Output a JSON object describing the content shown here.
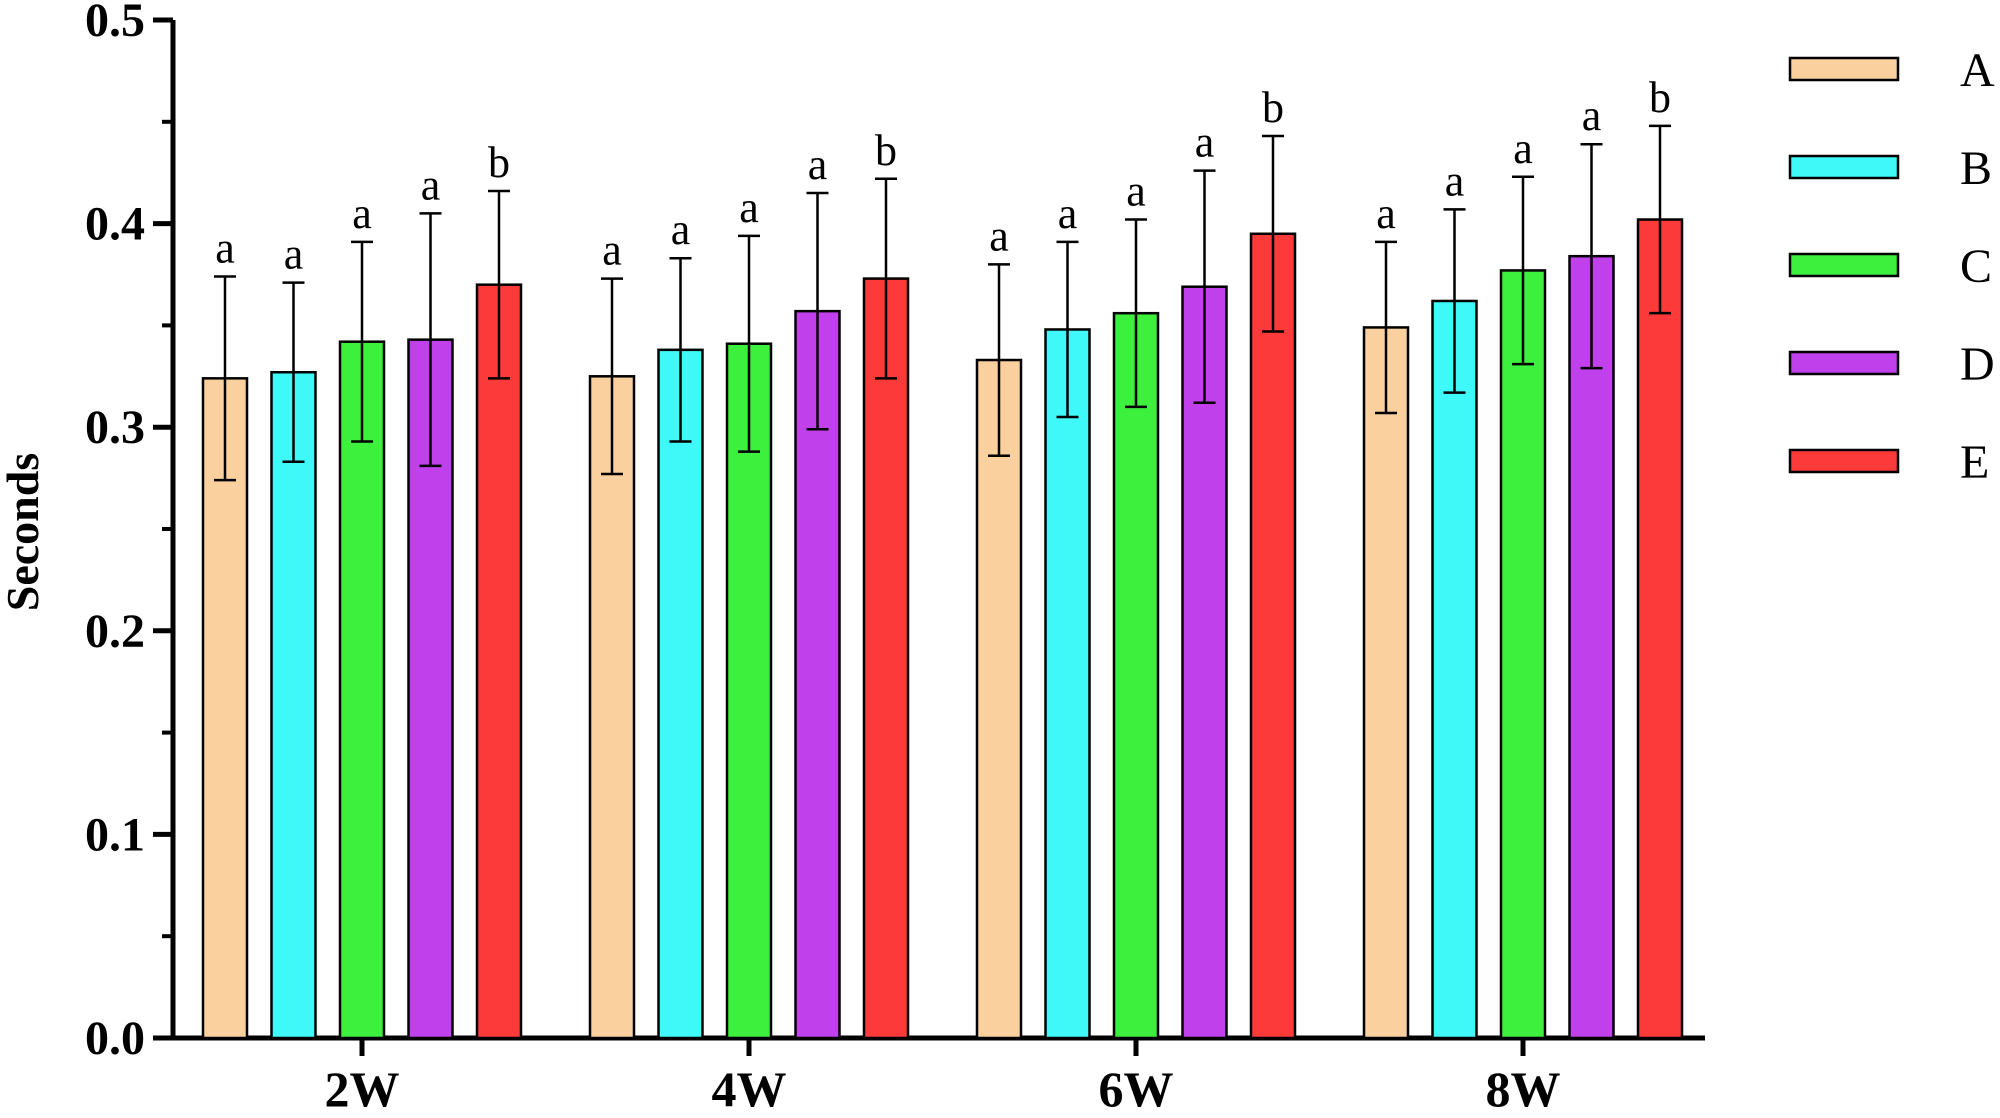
{
  "chart_data": {
    "type": "bar",
    "title": "",
    "xlabel": "",
    "ylabel": "Seconds",
    "ylim": [
      0,
      0.5
    ],
    "yticks": [
      "0.0",
      "0.1",
      "0.2",
      "0.3",
      "0.4",
      "0.5"
    ],
    "categories": [
      "2W",
      "4W",
      "6W",
      "8W"
    ],
    "legend_position": "right",
    "series": [
      {
        "name": "A",
        "color": "#FAD09E",
        "values": [
          0.324,
          0.325,
          0.333,
          0.349
        ],
        "errors": [
          0.05,
          0.048,
          0.047,
          0.042
        ],
        "labels": [
          "a",
          "a",
          "a",
          "a"
        ]
      },
      {
        "name": "B",
        "color": "#3FF9F9",
        "values": [
          0.327,
          0.338,
          0.348,
          0.362
        ],
        "errors": [
          0.044,
          0.045,
          0.043,
          0.045
        ],
        "labels": [
          "a",
          "a",
          "a",
          "a"
        ]
      },
      {
        "name": "C",
        "color": "#3EF03E",
        "values": [
          0.342,
          0.341,
          0.356,
          0.377
        ],
        "errors": [
          0.049,
          0.053,
          0.046,
          0.046
        ],
        "labels": [
          "a",
          "a",
          "a",
          "a"
        ]
      },
      {
        "name": "D",
        "color": "#C041EC",
        "values": [
          0.343,
          0.357,
          0.369,
          0.384
        ],
        "errors": [
          0.062,
          0.058,
          0.057,
          0.055
        ],
        "labels": [
          "a",
          "a",
          "a",
          "a"
        ]
      },
      {
        "name": "E",
        "color": "#FC3A3A",
        "values": [
          0.37,
          0.373,
          0.395,
          0.402
        ],
        "errors": [
          0.046,
          0.049,
          0.048,
          0.046
        ],
        "labels": [
          "b",
          "b",
          "b",
          "b"
        ]
      }
    ]
  }
}
